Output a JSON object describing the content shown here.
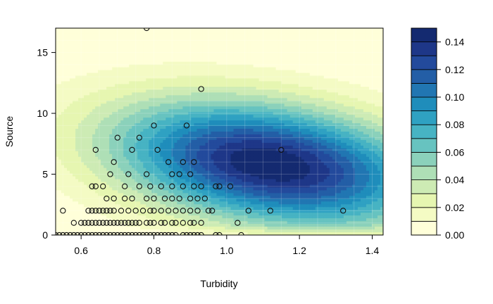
{
  "chart_data": {
    "type": "heatmap",
    "subtype": "filled-contour-with-scatter",
    "title": "",
    "xlabel": "Turbidity",
    "ylabel": "Source",
    "xlim": [
      0.53,
      1.43
    ],
    "ylim": [
      0,
      17
    ],
    "x_ticks": [
      0.6,
      0.8,
      1.0,
      1.2,
      1.4
    ],
    "x_tick_labels": [
      "0.6",
      "0.8",
      "1.0",
      "1.2",
      "1.4"
    ],
    "y_ticks": [
      0,
      5,
      10,
      15
    ],
    "y_tick_labels": [
      "0",
      "5",
      "10",
      "15"
    ],
    "grid": true,
    "density_peak": {
      "x": 1.12,
      "y": 5.8,
      "value": 0.15
    },
    "colorbar": {
      "levels": [
        0.0,
        0.01,
        0.02,
        0.03,
        0.04,
        0.05,
        0.06,
        0.07,
        0.08,
        0.09,
        0.1,
        0.11,
        0.12,
        0.13,
        0.14,
        0.15
      ],
      "tick_values": [
        0.0,
        0.02,
        0.04,
        0.06,
        0.08,
        0.1,
        0.12,
        0.14
      ],
      "tick_labels": [
        "0.00",
        "0.02",
        "0.04",
        "0.06",
        "0.08",
        "0.10",
        "0.12",
        "0.14"
      ],
      "colors": [
        "#ffffd9",
        "#f4fbc4",
        "#e6f6b1",
        "#cdebb4",
        "#aedfb6",
        "#8bd1bb",
        "#67c3c0",
        "#47b3c3",
        "#2fa1c2",
        "#1f8dbb",
        "#2176b2",
        "#235ea6",
        "#234a9c",
        "#1e3788",
        "#142a70"
      ]
    },
    "points": [
      [
        0.78,
        17
      ],
      [
        0.93,
        12
      ],
      [
        0.8,
        9
      ],
      [
        0.89,
        9
      ],
      [
        0.7,
        8
      ],
      [
        0.76,
        8
      ],
      [
        0.64,
        7
      ],
      [
        0.74,
        7
      ],
      [
        0.81,
        7
      ],
      [
        1.15,
        7
      ],
      [
        0.69,
        6
      ],
      [
        0.84,
        6
      ],
      [
        0.88,
        6
      ],
      [
        0.91,
        6
      ],
      [
        0.68,
        5
      ],
      [
        0.73,
        5
      ],
      [
        0.78,
        5
      ],
      [
        0.85,
        5
      ],
      [
        0.87,
        5
      ],
      [
        0.9,
        5
      ],
      [
        0.63,
        4
      ],
      [
        0.64,
        4
      ],
      [
        0.66,
        4
      ],
      [
        0.72,
        4
      ],
      [
        0.76,
        4
      ],
      [
        0.79,
        4
      ],
      [
        0.82,
        4
      ],
      [
        0.85,
        4
      ],
      [
        0.88,
        4
      ],
      [
        0.91,
        4
      ],
      [
        0.93,
        4
      ],
      [
        0.97,
        4
      ],
      [
        0.98,
        4
      ],
      [
        1.01,
        4
      ],
      [
        0.67,
        3
      ],
      [
        0.69,
        3
      ],
      [
        0.72,
        3
      ],
      [
        0.74,
        3
      ],
      [
        0.78,
        3
      ],
      [
        0.8,
        3
      ],
      [
        0.83,
        3
      ],
      [
        0.85,
        3
      ],
      [
        0.87,
        3
      ],
      [
        0.9,
        3
      ],
      [
        0.92,
        3
      ],
      [
        0.94,
        3
      ],
      [
        0.55,
        2
      ],
      [
        0.62,
        2
      ],
      [
        0.63,
        2
      ],
      [
        0.64,
        2
      ],
      [
        0.65,
        2
      ],
      [
        0.66,
        2
      ],
      [
        0.67,
        2
      ],
      [
        0.68,
        2
      ],
      [
        0.69,
        2
      ],
      [
        0.71,
        2
      ],
      [
        0.73,
        2
      ],
      [
        0.75,
        2
      ],
      [
        0.77,
        2
      ],
      [
        0.79,
        2
      ],
      [
        0.8,
        2
      ],
      [
        0.82,
        2
      ],
      [
        0.84,
        2
      ],
      [
        0.86,
        2
      ],
      [
        0.88,
        2
      ],
      [
        0.9,
        2
      ],
      [
        0.92,
        2
      ],
      [
        0.95,
        2
      ],
      [
        0.96,
        2
      ],
      [
        1.06,
        2
      ],
      [
        1.12,
        2
      ],
      [
        1.32,
        2
      ],
      [
        0.58,
        1
      ],
      [
        0.6,
        1
      ],
      [
        0.61,
        1
      ],
      [
        0.62,
        1
      ],
      [
        0.63,
        1
      ],
      [
        0.64,
        1
      ],
      [
        0.65,
        1
      ],
      [
        0.66,
        1
      ],
      [
        0.67,
        1
      ],
      [
        0.68,
        1
      ],
      [
        0.69,
        1
      ],
      [
        0.7,
        1
      ],
      [
        0.71,
        1
      ],
      [
        0.72,
        1
      ],
      [
        0.73,
        1
      ],
      [
        0.74,
        1
      ],
      [
        0.75,
        1
      ],
      [
        0.76,
        1
      ],
      [
        0.78,
        1
      ],
      [
        0.79,
        1
      ],
      [
        0.8,
        1
      ],
      [
        0.82,
        1
      ],
      [
        0.83,
        1
      ],
      [
        0.85,
        1
      ],
      [
        0.86,
        1
      ],
      [
        0.88,
        1
      ],
      [
        0.9,
        1
      ],
      [
        0.91,
        1
      ],
      [
        0.93,
        1
      ],
      [
        1.03,
        1
      ],
      [
        0.53,
        0
      ],
      [
        0.54,
        0
      ],
      [
        0.55,
        0
      ],
      [
        0.56,
        0
      ],
      [
        0.57,
        0
      ],
      [
        0.58,
        0
      ],
      [
        0.59,
        0
      ],
      [
        0.6,
        0
      ],
      [
        0.61,
        0
      ],
      [
        0.62,
        0
      ],
      [
        0.63,
        0
      ],
      [
        0.64,
        0
      ],
      [
        0.65,
        0
      ],
      [
        0.66,
        0
      ],
      [
        0.67,
        0
      ],
      [
        0.68,
        0
      ],
      [
        0.69,
        0
      ],
      [
        0.7,
        0
      ],
      [
        0.71,
        0
      ],
      [
        0.72,
        0
      ],
      [
        0.73,
        0
      ],
      [
        0.74,
        0
      ],
      [
        0.75,
        0
      ],
      [
        0.76,
        0
      ],
      [
        0.77,
        0
      ],
      [
        0.78,
        0
      ],
      [
        0.79,
        0
      ],
      [
        0.8,
        0
      ],
      [
        0.81,
        0
      ],
      [
        0.82,
        0
      ],
      [
        0.83,
        0
      ],
      [
        0.84,
        0
      ],
      [
        0.85,
        0
      ],
      [
        0.86,
        0
      ],
      [
        0.88,
        0
      ],
      [
        0.89,
        0
      ],
      [
        0.9,
        0
      ],
      [
        0.91,
        0
      ],
      [
        0.92,
        0
      ],
      [
        0.93,
        0
      ],
      [
        0.97,
        0
      ],
      [
        0.98,
        0
      ],
      [
        1.04,
        0
      ]
    ]
  }
}
